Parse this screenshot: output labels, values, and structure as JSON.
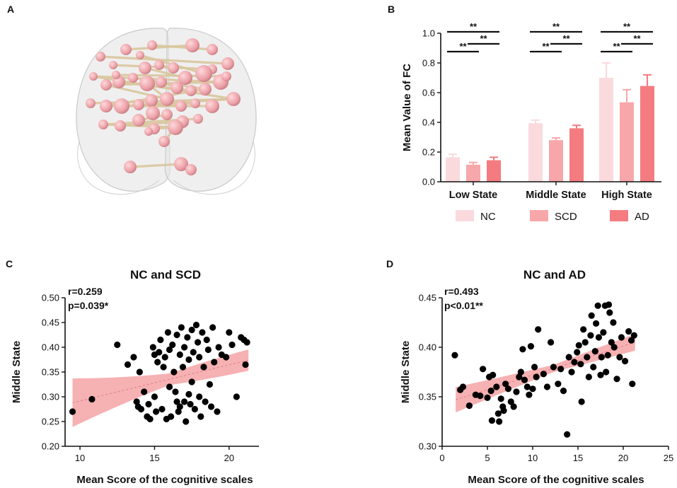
{
  "panel_labels": [
    "A",
    "B",
    "C",
    "D"
  ],
  "chart_data": [
    {
      "panel": "B",
      "type": "bar",
      "title": "",
      "ylabel": "Mean Value of FC",
      "xlabel": "",
      "ylim": [
        0,
        1.0
      ],
      "yticks": [
        "0.0",
        "0.2",
        "0.4",
        "0.6",
        "0.8",
        "1.0"
      ],
      "categories": [
        "Low State",
        "Middle State",
        "High State"
      ],
      "series": [
        {
          "name": "NC",
          "color": "#fadadd",
          "values": [
            0.165,
            0.395,
            0.7
          ],
          "errors": [
            0.02,
            0.02,
            0.1
          ]
        },
        {
          "name": "SCD",
          "color": "#f7a7a9",
          "values": [
            0.115,
            0.28,
            0.535
          ],
          "errors": [
            0.015,
            0.015,
            0.085
          ]
        },
        {
          "name": "AD",
          "color": "#f47c80",
          "values": [
            0.145,
            0.36,
            0.645
          ],
          "errors": [
            0.02,
            0.02,
            0.075
          ]
        }
      ],
      "significance": [
        {
          "text": "**"
        },
        {
          "text": "**"
        },
        {
          "text": "**"
        },
        {
          "text": "**"
        },
        {
          "text": "**"
        },
        {
          "text": "**"
        },
        {
          "text": "**"
        },
        {
          "text": "**"
        },
        {
          "text": "**"
        }
      ]
    },
    {
      "panel": "C",
      "type": "scatter",
      "title": "NC and SCD",
      "xlabel": "Mean Score of the cognitive scales",
      "ylabel": "Middle State",
      "xlim": [
        9,
        22
      ],
      "ylim": [
        0.2,
        0.5
      ],
      "xticks": [
        10,
        15,
        20
      ],
      "yticks": [
        "0.20",
        "0.25",
        "0.30",
        "0.35",
        "0.40",
        "0.45",
        "0.50"
      ],
      "r_text": "r=0.259",
      "p_text": "p=0.039*",
      "fit": {
        "x0": 9.5,
        "x1": 21.3,
        "y0": 0.288,
        "y1": 0.374,
        "band0": 0.046,
        "band1": 0.023
      },
      "points": [
        [
          9.5,
          0.27
        ],
        [
          10.8,
          0.295
        ],
        [
          12.5,
          0.405
        ],
        [
          13.2,
          0.365
        ],
        [
          13.6,
          0.38
        ],
        [
          13.8,
          0.29
        ],
        [
          13.9,
          0.28
        ],
        [
          14.0,
          0.35
        ],
        [
          14.1,
          0.275
        ],
        [
          14.3,
          0.31
        ],
        [
          14.5,
          0.26
        ],
        [
          14.6,
          0.285
        ],
        [
          14.7,
          0.255
        ],
        [
          14.9,
          0.4
        ],
        [
          15.0,
          0.385
        ],
        [
          15.0,
          0.3
        ],
        [
          15.1,
          0.27
        ],
        [
          15.2,
          0.37
        ],
        [
          15.3,
          0.39
        ],
        [
          15.4,
          0.415
        ],
        [
          15.5,
          0.275
        ],
        [
          15.6,
          0.36
        ],
        [
          15.7,
          0.38
        ],
        [
          15.8,
          0.255
        ],
        [
          15.9,
          0.43
        ],
        [
          16.0,
          0.395
        ],
        [
          16.0,
          0.32
        ],
        [
          16.1,
          0.26
        ],
        [
          16.2,
          0.405
        ],
        [
          16.3,
          0.35
        ],
        [
          16.4,
          0.31
        ],
        [
          16.5,
          0.29
        ],
        [
          16.5,
          0.425
        ],
        [
          16.6,
          0.27
        ],
        [
          16.7,
          0.385
        ],
        [
          16.7,
          0.28
        ],
        [
          16.8,
          0.44
        ],
        [
          16.9,
          0.36
        ],
        [
          17.0,
          0.4
        ],
        [
          17.0,
          0.29
        ],
        [
          17.1,
          0.25
        ],
        [
          17.2,
          0.42
        ],
        [
          17.3,
          0.375
        ],
        [
          17.3,
          0.305
        ],
        [
          17.4,
          0.285
        ],
        [
          17.5,
          0.435
        ],
        [
          17.5,
          0.33
        ],
        [
          17.6,
          0.39
        ],
        [
          17.7,
          0.275
        ],
        [
          17.8,
          0.445
        ],
        [
          17.9,
          0.41
        ],
        [
          18.0,
          0.3
        ],
        [
          18.0,
          0.38
        ],
        [
          18.1,
          0.26
        ],
        [
          18.2,
          0.43
        ],
        [
          18.3,
          0.36
        ],
        [
          18.4,
          0.29
        ],
        [
          18.5,
          0.415
        ],
        [
          18.6,
          0.395
        ],
        [
          18.7,
          0.325
        ],
        [
          18.8,
          0.28
        ],
        [
          18.9,
          0.44
        ],
        [
          19.0,
          0.37
        ],
        [
          19.2,
          0.27
        ],
        [
          19.3,
          0.4
        ],
        [
          19.5,
          0.385
        ],
        [
          19.8,
          0.38
        ],
        [
          20.0,
          0.43
        ],
        [
          20.2,
          0.405
        ],
        [
          20.5,
          0.3
        ],
        [
          20.8,
          0.42
        ],
        [
          21.0,
          0.415
        ],
        [
          21.1,
          0.365
        ],
        [
          21.2,
          0.41
        ]
      ]
    },
    {
      "panel": "D",
      "type": "scatter",
      "title": "NC and AD",
      "xlabel": "Mean Score of the cognitive scales",
      "ylabel": "Middle State",
      "xlim": [
        0,
        25
      ],
      "ylim": [
        0.3,
        0.45
      ],
      "xticks": [
        0,
        5,
        10,
        15,
        20,
        25
      ],
      "yticks": [
        "0.30",
        "0.35",
        "0.40",
        "0.45"
      ],
      "r_text": "r=0.493",
      "p_text": "p<0.01**",
      "fit": {
        "x0": 1.5,
        "x1": 21.3,
        "y0": 0.347,
        "y1": 0.405,
        "band0": 0.012,
        "band1": 0.009
      },
      "points": [
        [
          1.4,
          0.392
        ],
        [
          2.0,
          0.357
        ],
        [
          2.3,
          0.36
        ],
        [
          3.0,
          0.341
        ],
        [
          3.7,
          0.352
        ],
        [
          4.2,
          0.351
        ],
        [
          4.5,
          0.378
        ],
        [
          5.0,
          0.349
        ],
        [
          5.2,
          0.37
        ],
        [
          5.4,
          0.356
        ],
        [
          5.5,
          0.326
        ],
        [
          5.6,
          0.372
        ],
        [
          6.0,
          0.36
        ],
        [
          6.2,
          0.333
        ],
        [
          6.3,
          0.325
        ],
        [
          6.5,
          0.348
        ],
        [
          6.7,
          0.34
        ],
        [
          6.8,
          0.336
        ],
        [
          7.0,
          0.363
        ],
        [
          7.3,
          0.358
        ],
        [
          7.6,
          0.345
        ],
        [
          7.9,
          0.34
        ],
        [
          8.2,
          0.355
        ],
        [
          8.5,
          0.37
        ],
        [
          8.7,
          0.375
        ],
        [
          8.9,
          0.398
        ],
        [
          9.1,
          0.367
        ],
        [
          9.4,
          0.36
        ],
        [
          9.6,
          0.352
        ],
        [
          9.8,
          0.401
        ],
        [
          10.0,
          0.358
        ],
        [
          10.2,
          0.38
        ],
        [
          10.4,
          0.37
        ],
        [
          10.6,
          0.418
        ],
        [
          11.2,
          0.373
        ],
        [
          11.6,
          0.36
        ],
        [
          12.0,
          0.405
        ],
        [
          12.3,
          0.38
        ],
        [
          12.8,
          0.363
        ],
        [
          13.1,
          0.378
        ],
        [
          13.4,
          0.356
        ],
        [
          13.8,
          0.312
        ],
        [
          14.0,
          0.39
        ],
        [
          14.3,
          0.375
        ],
        [
          14.6,
          0.385
        ],
        [
          14.9,
          0.395
        ],
        [
          15.1,
          0.402
        ],
        [
          15.3,
          0.383
        ],
        [
          15.4,
          0.345
        ],
        [
          15.6,
          0.418
        ],
        [
          15.8,
          0.405
        ],
        [
          16.0,
          0.39
        ],
        [
          16.2,
          0.37
        ],
        [
          16.4,
          0.412
        ],
        [
          16.5,
          0.432
        ],
        [
          16.7,
          0.38
        ],
        [
          16.9,
          0.396
        ],
        [
          17.0,
          0.424
        ],
        [
          17.2,
          0.442
        ],
        [
          17.3,
          0.41
        ],
        [
          17.5,
          0.372
        ],
        [
          17.6,
          0.39
        ],
        [
          17.8,
          0.415
        ],
        [
          18.0,
          0.442
        ],
        [
          18.1,
          0.375
        ],
        [
          18.3,
          0.392
        ],
        [
          18.4,
          0.443
        ],
        [
          18.5,
          0.435
        ],
        [
          18.7,
          0.405
        ],
        [
          18.9,
          0.425
        ],
        [
          19.0,
          0.4
        ],
        [
          19.3,
          0.368
        ],
        [
          19.6,
          0.39
        ],
        [
          19.8,
          0.41
        ],
        [
          20.2,
          0.386
        ],
        [
          20.6,
          0.416
        ],
        [
          20.9,
          0.407
        ],
        [
          21.0,
          0.363
        ],
        [
          21.2,
          0.412
        ]
      ]
    }
  ],
  "brain_network": {
    "caption": "",
    "node_color": "#eaa0a6",
    "edge_color": "#d9c79e"
  }
}
